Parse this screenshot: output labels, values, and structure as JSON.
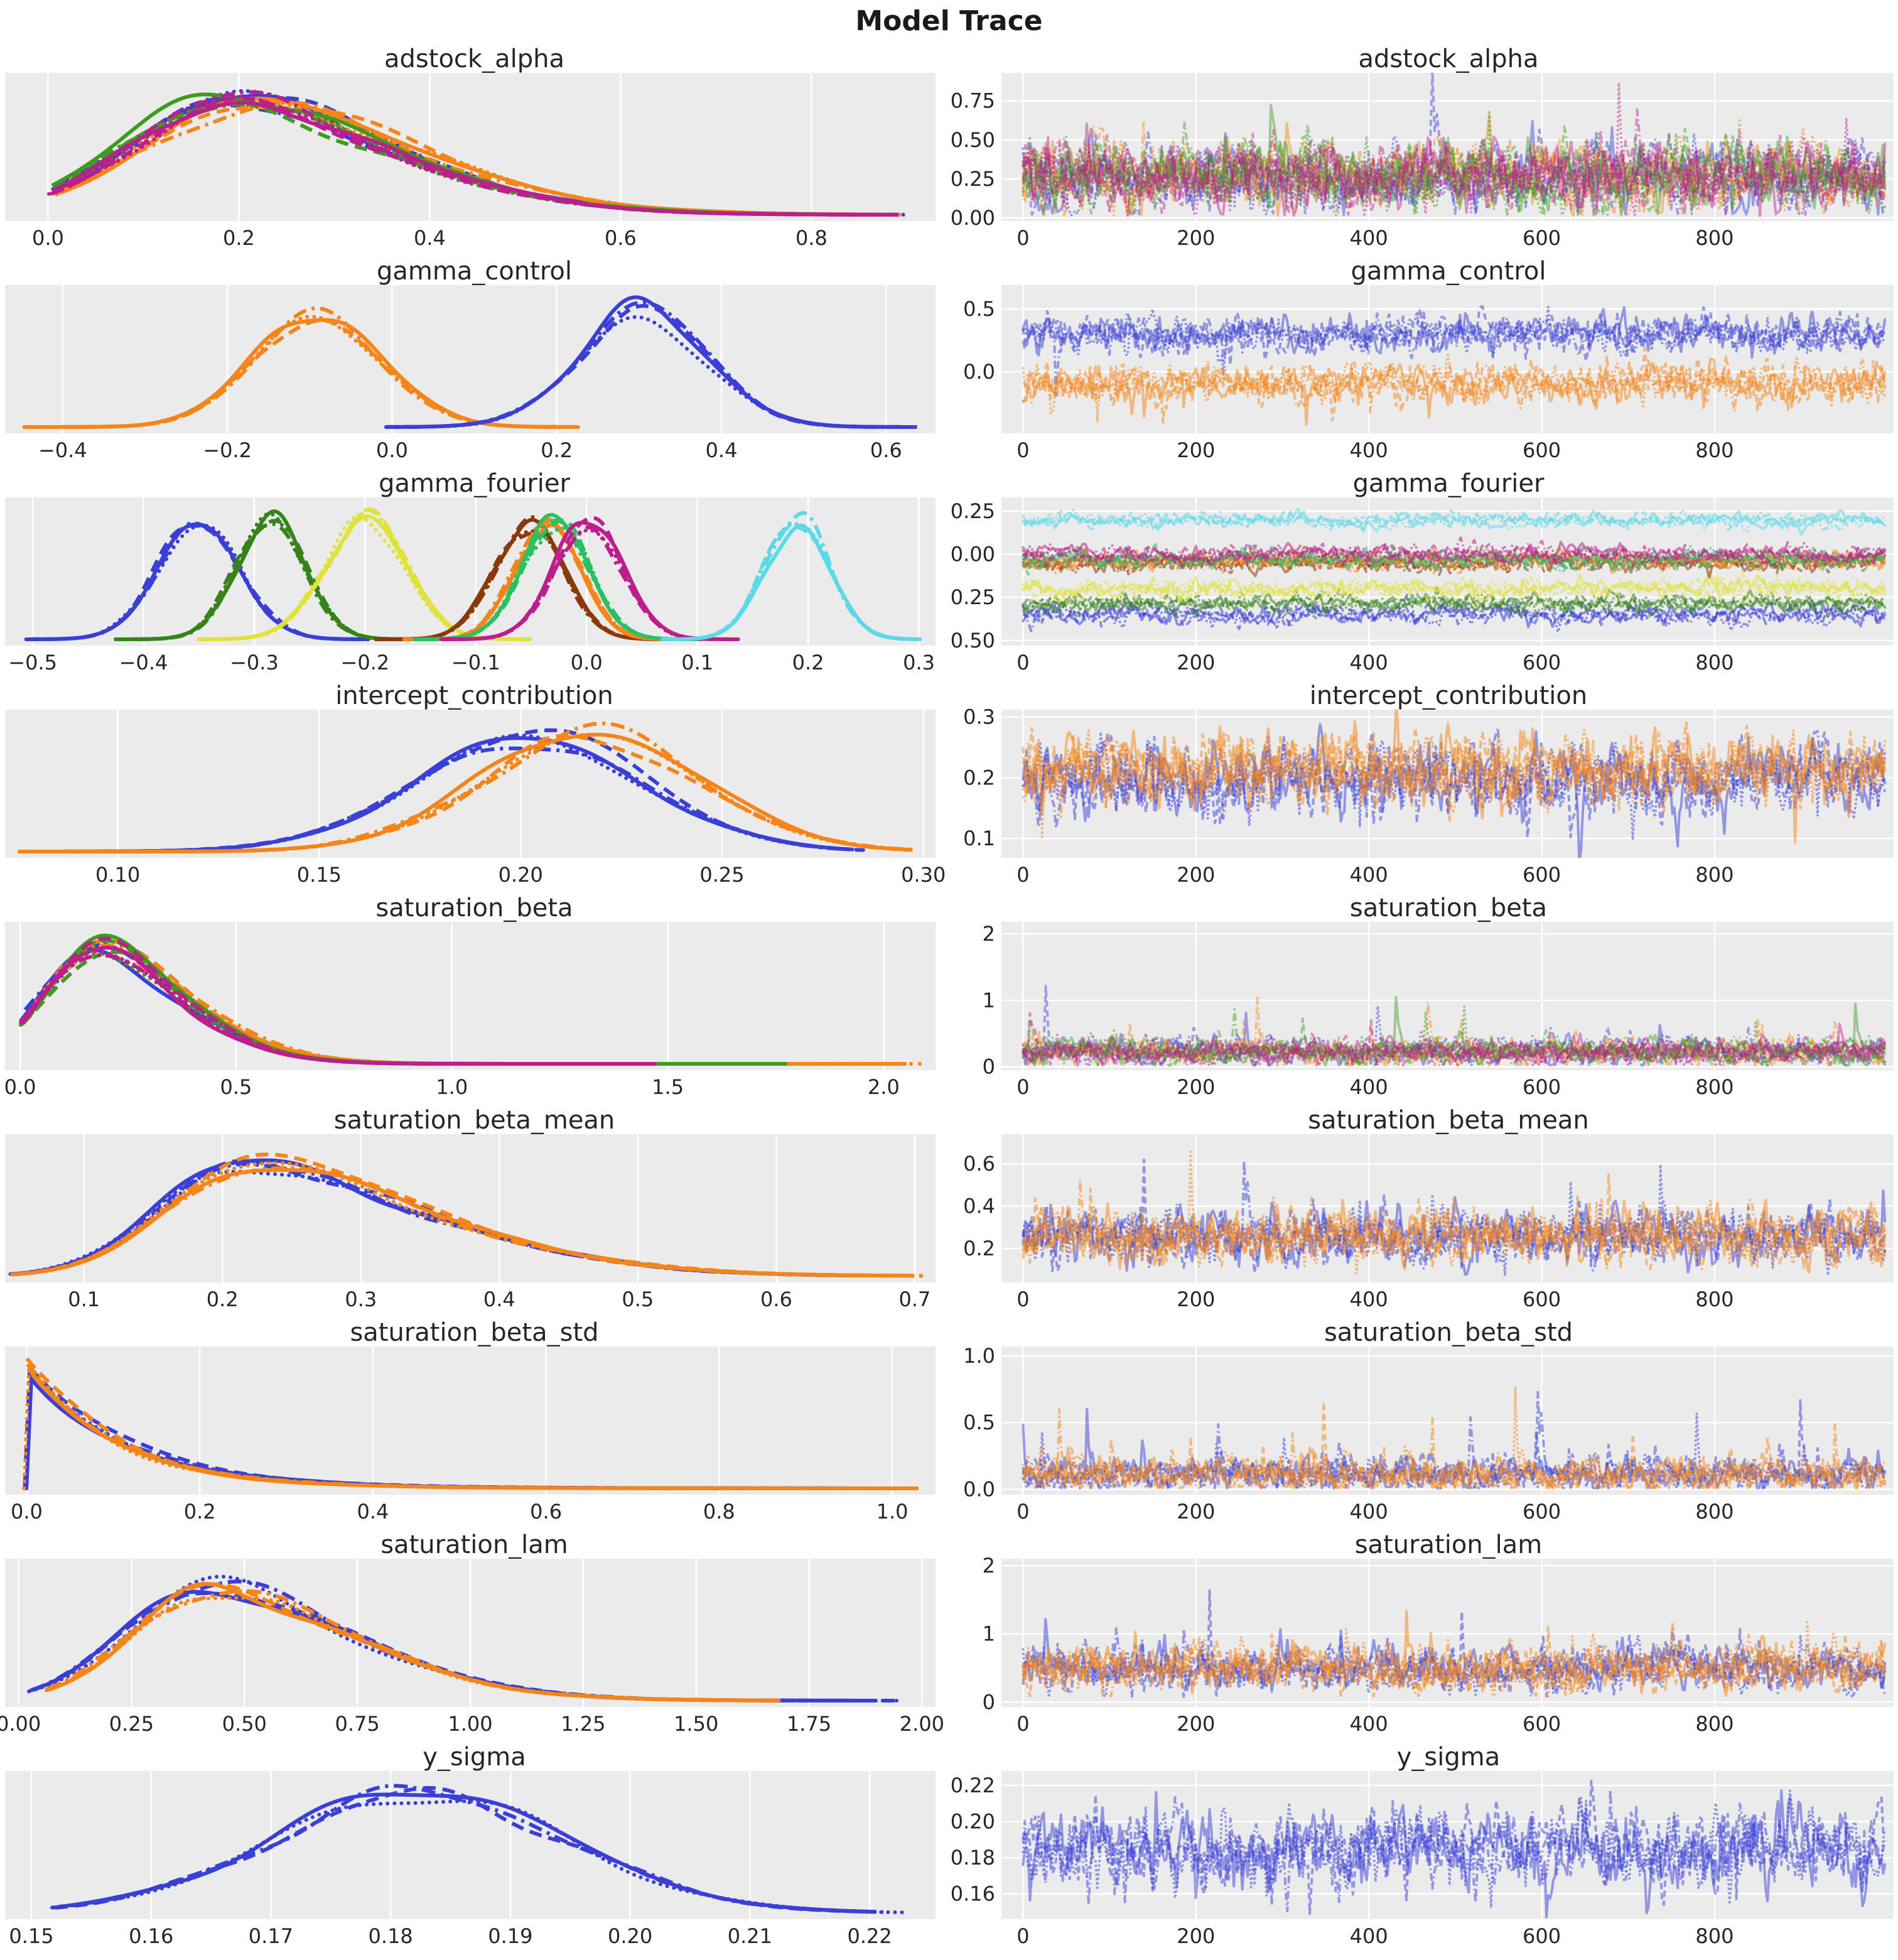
{
  "page_title": "Model Trace",
  "chart_data": {
    "type": "line",
    "suptitle": "Model Trace",
    "description": "ArviZ-style posterior trace plot: left column KDE density per chain (4 linestyles: solid, dashed, dashdot, dotted), right column sampled value traces over draws 0-1000",
    "palette": {
      "blue": "#3a3fd6",
      "orange": "#f58518",
      "green": "#3f9b1e",
      "magenta": "#bc1f8b",
      "forest": "#35831a",
      "yellow": "#e0e23a",
      "brown": "#8a3a0a",
      "emerald": "#2cc062",
      "cyan": "#5cd9e9"
    },
    "plot_bg": "#ebebeb",
    "grid_color": "#ffffff",
    "text_color": "#262626",
    "chain_linestyles": [
      "solid",
      "dashed",
      "dashdot",
      "dotted"
    ],
    "trace": {
      "xlim": [
        -25,
        1007
      ],
      "xticks": [
        "0",
        "200",
        "400",
        "600",
        "800"
      ]
    },
    "rows": [
      {
        "param": "adstock_alpha",
        "kde": {
          "xlim": [
            -0.045,
            0.93
          ],
          "peak": 0.84,
          "xticks": [
            "0.0",
            "0.2",
            "0.4",
            "0.6",
            "0.8"
          ],
          "components": [
            {
              "color": "blue",
              "type": "skew",
              "loc": 0.095,
              "scale": 0.205,
              "alpha": 2.0,
              "range": [
                0.005,
                0.9
              ]
            },
            {
              "color": "orange",
              "type": "skew",
              "loc": 0.115,
              "scale": 0.21,
              "alpha": 2.0,
              "range": [
                0.01,
                0.88
              ]
            },
            {
              "color": "green",
              "type": "skew",
              "loc": 0.085,
              "scale": 0.21,
              "alpha": 2.2,
              "range": [
                0.005,
                0.86
              ]
            },
            {
              "color": "magenta",
              "type": "skew",
              "loc": 0.1,
              "scale": 0.2,
              "alpha": 2.0,
              "range": [
                0.005,
                0.88
              ]
            }
          ]
        },
        "trace": {
          "ylim": [
            -0.02,
            0.93
          ],
          "yticks": [
            "0.00",
            "0.25",
            "0.50",
            "0.75"
          ],
          "series": [
            {
              "color": "blue",
              "mean": 0.27,
              "sd": 0.105,
              "min": 0.015,
              "spike": {
                "prob": 0.004,
                "scale": 0.28,
                "dir": 1
              }
            },
            {
              "color": "orange",
              "mean": 0.27,
              "sd": 0.105,
              "min": 0.015,
              "spike": {
                "prob": 0.004,
                "scale": 0.28,
                "dir": 1
              }
            },
            {
              "color": "green",
              "mean": 0.27,
              "sd": 0.105,
              "min": 0.015,
              "spike": {
                "prob": 0.004,
                "scale": 0.28,
                "dir": 1
              }
            },
            {
              "color": "magenta",
              "mean": 0.27,
              "sd": 0.105,
              "min": 0.015,
              "spike": {
                "prob": 0.004,
                "scale": 0.28,
                "dir": 1
              }
            }
          ]
        }
      },
      {
        "param": "gamma_control",
        "kde": {
          "xlim": [
            -0.47,
            0.66
          ],
          "peak": 0.85,
          "xticks": [
            "−0.4",
            "−0.2",
            "0.0",
            "0.2",
            "0.4",
            "0.6"
          ],
          "components": [
            {
              "color": "orange",
              "type": "norm",
              "loc": -0.09,
              "scale": 0.077,
              "range": [
                -0.445,
                0.215
              ]
            },
            {
              "color": "blue",
              "type": "norm",
              "loc": 0.305,
              "scale": 0.077,
              "range": [
                -0.005,
                0.635
              ]
            }
          ]
        },
        "trace": {
          "ylim": [
            -0.49,
            0.69
          ],
          "yticks": [
            "0.0",
            "0.5"
          ],
          "series": [
            {
              "color": "blue",
              "mean": 0.3,
              "sd": 0.068,
              "spike": {
                "prob": 0.012,
                "scale": 0.17,
                "dir": -1
              }
            },
            {
              "color": "orange",
              "mean": -0.09,
              "sd": 0.075,
              "spike": {
                "prob": 0.015,
                "scale": 0.16,
                "dir": -1
              }
            }
          ]
        }
      },
      {
        "param": "gamma_fourier",
        "kde": {
          "xlim": [
            -0.525,
            0.315
          ],
          "peak": 0.88,
          "xticks": [
            "−0.5",
            "−0.4",
            "−0.3",
            "−0.2",
            "−0.1",
            "0.0",
            "0.1",
            "0.2",
            "0.3"
          ],
          "components": [
            {
              "color": "blue",
              "type": "norm",
              "loc": -0.35,
              "scale": 0.037,
              "range": [
                -0.505,
                -0.2
              ]
            },
            {
              "color": "forest",
              "type": "norm",
              "loc": -0.285,
              "scale": 0.031,
              "range": [
                -0.425,
                -0.15
              ]
            },
            {
              "color": "yellow",
              "type": "norm",
              "loc": -0.2,
              "scale": 0.036,
              "range": [
                -0.35,
                -0.055
              ]
            },
            {
              "color": "brown",
              "type": "norm",
              "loc": -0.052,
              "scale": 0.031,
              "range": [
                -0.19,
                0.075
              ]
            },
            {
              "color": "orange",
              "type": "norm",
              "loc": -0.035,
              "scale": 0.029,
              "range": [
                -0.165,
                0.09
              ]
            },
            {
              "color": "emerald",
              "type": "norm",
              "loc": -0.028,
              "scale": 0.03,
              "range": [
                -0.155,
                0.1
              ]
            },
            {
              "color": "magenta",
              "type": "norm",
              "loc": 0.002,
              "scale": 0.031,
              "range": [
                -0.13,
                0.135
              ]
            },
            {
              "color": "cyan",
              "type": "norm",
              "loc": 0.19,
              "scale": 0.029,
              "range": [
                0.068,
                0.298
              ]
            }
          ]
        },
        "trace": {
          "ylim": [
            -0.53,
            0.33
          ],
          "yticks": [
            "0.25",
            "0.00",
            "−0.25",
            "−0.50"
          ],
          "series": [
            {
              "color": "blue",
              "mean": -0.35,
              "sd": 0.03,
              "spike": {
                "prob": 0.005,
                "scale": 0.06,
                "dir": -1
              }
            },
            {
              "color": "forest",
              "mean": -0.285,
              "sd": 0.026,
              "spike": {
                "prob": 0.004,
                "scale": 0.05,
                "dir": 0
              }
            },
            {
              "color": "yellow",
              "mean": -0.2,
              "sd": 0.028,
              "spike": {
                "prob": 0.004,
                "scale": 0.05,
                "dir": 0
              }
            },
            {
              "color": "brown",
              "mean": -0.05,
              "sd": 0.024,
              "spike": {
                "prob": 0.004,
                "scale": 0.05,
                "dir": 0
              }
            },
            {
              "color": "orange",
              "mean": -0.038,
              "sd": 0.024,
              "spike": {
                "prob": 0.004,
                "scale": 0.05,
                "dir": 0
              }
            },
            {
              "color": "emerald",
              "mean": -0.028,
              "sd": 0.024,
              "spike": {
                "prob": 0.004,
                "scale": 0.05,
                "dir": 0
              }
            },
            {
              "color": "magenta",
              "mean": 0.0,
              "sd": 0.026,
              "spike": {
                "prob": 0.004,
                "scale": 0.05,
                "dir": 0
              }
            },
            {
              "color": "cyan",
              "mean": 0.195,
              "sd": 0.022,
              "spike": {
                "prob": 0.004,
                "scale": 0.04,
                "dir": 0
              }
            }
          ]
        }
      },
      {
        "param": "intercept_contribution",
        "kde": {
          "xlim": [
            0.072,
            0.303
          ],
          "peak": 0.85,
          "xticks": [
            "0.10",
            "0.15",
            "0.20",
            "0.25",
            "0.30"
          ],
          "components": [
            {
              "color": "blue",
              "type": "norm",
              "loc": 0.202,
              "scale": 0.0285,
              "range": [
                0.076,
                0.285
              ]
            },
            {
              "color": "orange",
              "type": "norm",
              "loc": 0.2175,
              "scale": 0.0275,
              "range": [
                0.076,
                0.295
              ]
            }
          ]
        },
        "trace": {
          "ylim": [
            0.068,
            0.312
          ],
          "yticks": [
            "0.1",
            "0.2",
            "0.3"
          ],
          "series": [
            {
              "color": "blue",
              "mean": 0.198,
              "sd": 0.027,
              "spike": {
                "prob": 0.01,
                "scale": 0.05,
                "dir": -1
              }
            },
            {
              "color": "orange",
              "mean": 0.214,
              "sd": 0.027,
              "spike": {
                "prob": 0.01,
                "scale": 0.05,
                "dir": -1
              }
            }
          ]
        }
      },
      {
        "param": "saturation_beta",
        "kde": {
          "xlim": [
            -0.035,
            2.12
          ],
          "peak": 0.87,
          "xticks": [
            "0.0",
            "0.5",
            "1.0",
            "1.5",
            "2.0"
          ],
          "components": [
            {
              "color": "blue",
              "type": "skew",
              "loc": 0.06,
              "scale": 0.24,
              "alpha": 2.2,
              "range": [
                0.005,
                1.5
              ]
            },
            {
              "color": "orange",
              "type": "skew",
              "loc": 0.075,
              "scale": 0.25,
              "alpha": 2.2,
              "range": [
                0.005,
                2.06
              ]
            },
            {
              "color": "green",
              "type": "skew",
              "loc": 0.07,
              "scale": 0.24,
              "alpha": 2.2,
              "range": [
                0.005,
                1.75
              ]
            },
            {
              "color": "magenta",
              "type": "skew",
              "loc": 0.065,
              "scale": 0.235,
              "alpha": 2.2,
              "range": [
                0.005,
                1.45
              ]
            }
          ]
        },
        "trace": {
          "ylim": [
            -0.05,
            2.18
          ],
          "yticks": [
            "0",
            "1",
            "2"
          ],
          "series": [
            {
              "color": "blue",
              "mean": 0.23,
              "sd": 0.095,
              "min": 0.02,
              "spike": {
                "prob": 0.007,
                "scale": 0.5,
                "dir": 1
              }
            },
            {
              "color": "orange",
              "mean": 0.23,
              "sd": 0.095,
              "min": 0.02,
              "spike": {
                "prob": 0.008,
                "scale": 0.7,
                "dir": 1
              }
            },
            {
              "color": "green",
              "mean": 0.23,
              "sd": 0.095,
              "min": 0.02,
              "spike": {
                "prob": 0.007,
                "scale": 0.55,
                "dir": 1
              }
            },
            {
              "color": "magenta",
              "mean": 0.23,
              "sd": 0.095,
              "min": 0.02,
              "spike": {
                "prob": 0.007,
                "scale": 0.45,
                "dir": 1
              }
            }
          ]
        }
      },
      {
        "param": "saturation_beta_mean",
        "kde": {
          "xlim": [
            0.043,
            0.715
          ],
          "peak": 0.85,
          "xticks": [
            "0.1",
            "0.2",
            "0.3",
            "0.4",
            "0.5",
            "0.6",
            "0.7"
          ],
          "components": [
            {
              "color": "blue",
              "type": "skew",
              "loc": 0.155,
              "scale": 0.155,
              "alpha": 3.0,
              "range": [
                0.048,
                0.65
              ]
            },
            {
              "color": "orange",
              "type": "skew",
              "loc": 0.16,
              "scale": 0.155,
              "alpha": 3.0,
              "range": [
                0.048,
                0.7
              ]
            }
          ]
        },
        "trace": {
          "ylim": [
            0.04,
            0.74
          ],
          "yticks": [
            "0.2",
            "0.4",
            "0.6"
          ],
          "series": [
            {
              "color": "blue",
              "mean": 0.255,
              "sd": 0.062,
              "min": 0.07,
              "spike": {
                "prob": 0.012,
                "scale": 0.16,
                "dir": 1
              }
            },
            {
              "color": "orange",
              "mean": 0.255,
              "sd": 0.062,
              "min": 0.07,
              "spike": {
                "prob": 0.012,
                "scale": 0.16,
                "dir": 1
              }
            }
          ]
        }
      },
      {
        "param": "saturation_beta_std",
        "kde": {
          "xlim": [
            -0.025,
            1.05
          ],
          "peak": 0.92,
          "xticks": [
            "0.0",
            "0.2",
            "0.4",
            "0.6",
            "0.8",
            "1.0"
          ],
          "components": [
            {
              "color": "blue",
              "type": "decay",
              "tau": 0.115,
              "range": [
                0.0,
                1.02
              ]
            },
            {
              "color": "orange",
              "type": "decay",
              "tau": 0.105,
              "range": [
                0.0,
                1.02
              ]
            }
          ]
        },
        "trace": {
          "ylim": [
            -0.04,
            1.07
          ],
          "yticks": [
            "0.0",
            "0.5",
            "1.0"
          ],
          "series": [
            {
              "color": "blue",
              "mean": 0.11,
              "sd": 0.06,
              "min": 0.008,
              "spike": {
                "prob": 0.013,
                "scale": 0.3,
                "dir": 1
              }
            },
            {
              "color": "orange",
              "mean": 0.11,
              "sd": 0.06,
              "min": 0.008,
              "spike": {
                "prob": 0.013,
                "scale": 0.3,
                "dir": 1
              }
            }
          ]
        }
      },
      {
        "param": "saturation_lam",
        "kde": {
          "xlim": [
            -0.03,
            2.03
          ],
          "peak": 0.85,
          "xticks": [
            "0.00",
            "0.25",
            "0.50",
            "0.75",
            "1.00",
            "1.25",
            "1.50",
            "1.75",
            "2.00"
          ],
          "components": [
            {
              "color": "blue",
              "type": "skew",
              "loc": 0.24,
              "scale": 0.39,
              "alpha": 2.6,
              "range": [
                0.03,
                1.92
              ]
            },
            {
              "color": "orange",
              "type": "skew",
              "loc": 0.26,
              "scale": 0.38,
              "alpha": 2.6,
              "range": [
                0.06,
                1.66
              ]
            }
          ]
        },
        "trace": {
          "ylim": [
            -0.07,
            2.1
          ],
          "yticks": [
            "0",
            "1",
            "2"
          ],
          "series": [
            {
              "color": "blue",
              "mean": 0.5,
              "sd": 0.16,
              "min": 0.08,
              "spike": {
                "prob": 0.009,
                "scale": 0.5,
                "dir": 1
              }
            },
            {
              "color": "orange",
              "mean": 0.5,
              "sd": 0.16,
              "min": 0.08,
              "spike": {
                "prob": 0.009,
                "scale": 0.5,
                "dir": 1
              }
            }
          ]
        }
      },
      {
        "param": "y_sigma",
        "kde": {
          "xlim": [
            0.1478,
            0.2255
          ],
          "peak": 0.86,
          "xticks": [
            "0.15",
            "0.16",
            "0.17",
            "0.18",
            "0.19",
            "0.20",
            "0.21",
            "0.22"
          ],
          "components": [
            {
              "color": "blue",
              "type": "norm",
              "loc": 0.1825,
              "scale": 0.0123,
              "range": [
                0.152,
                0.2215
              ]
            }
          ]
        },
        "trace": {
          "ylim": [
            0.146,
            0.228
          ],
          "yticks": [
            "0.16",
            "0.18",
            "0.20",
            "0.22"
          ],
          "series": [
            {
              "color": "blue",
              "mean": 0.1845,
              "sd": 0.0105,
              "spike": {
                "prob": 0.008,
                "scale": 0.02,
                "dir": 0
              }
            }
          ]
        }
      }
    ]
  }
}
